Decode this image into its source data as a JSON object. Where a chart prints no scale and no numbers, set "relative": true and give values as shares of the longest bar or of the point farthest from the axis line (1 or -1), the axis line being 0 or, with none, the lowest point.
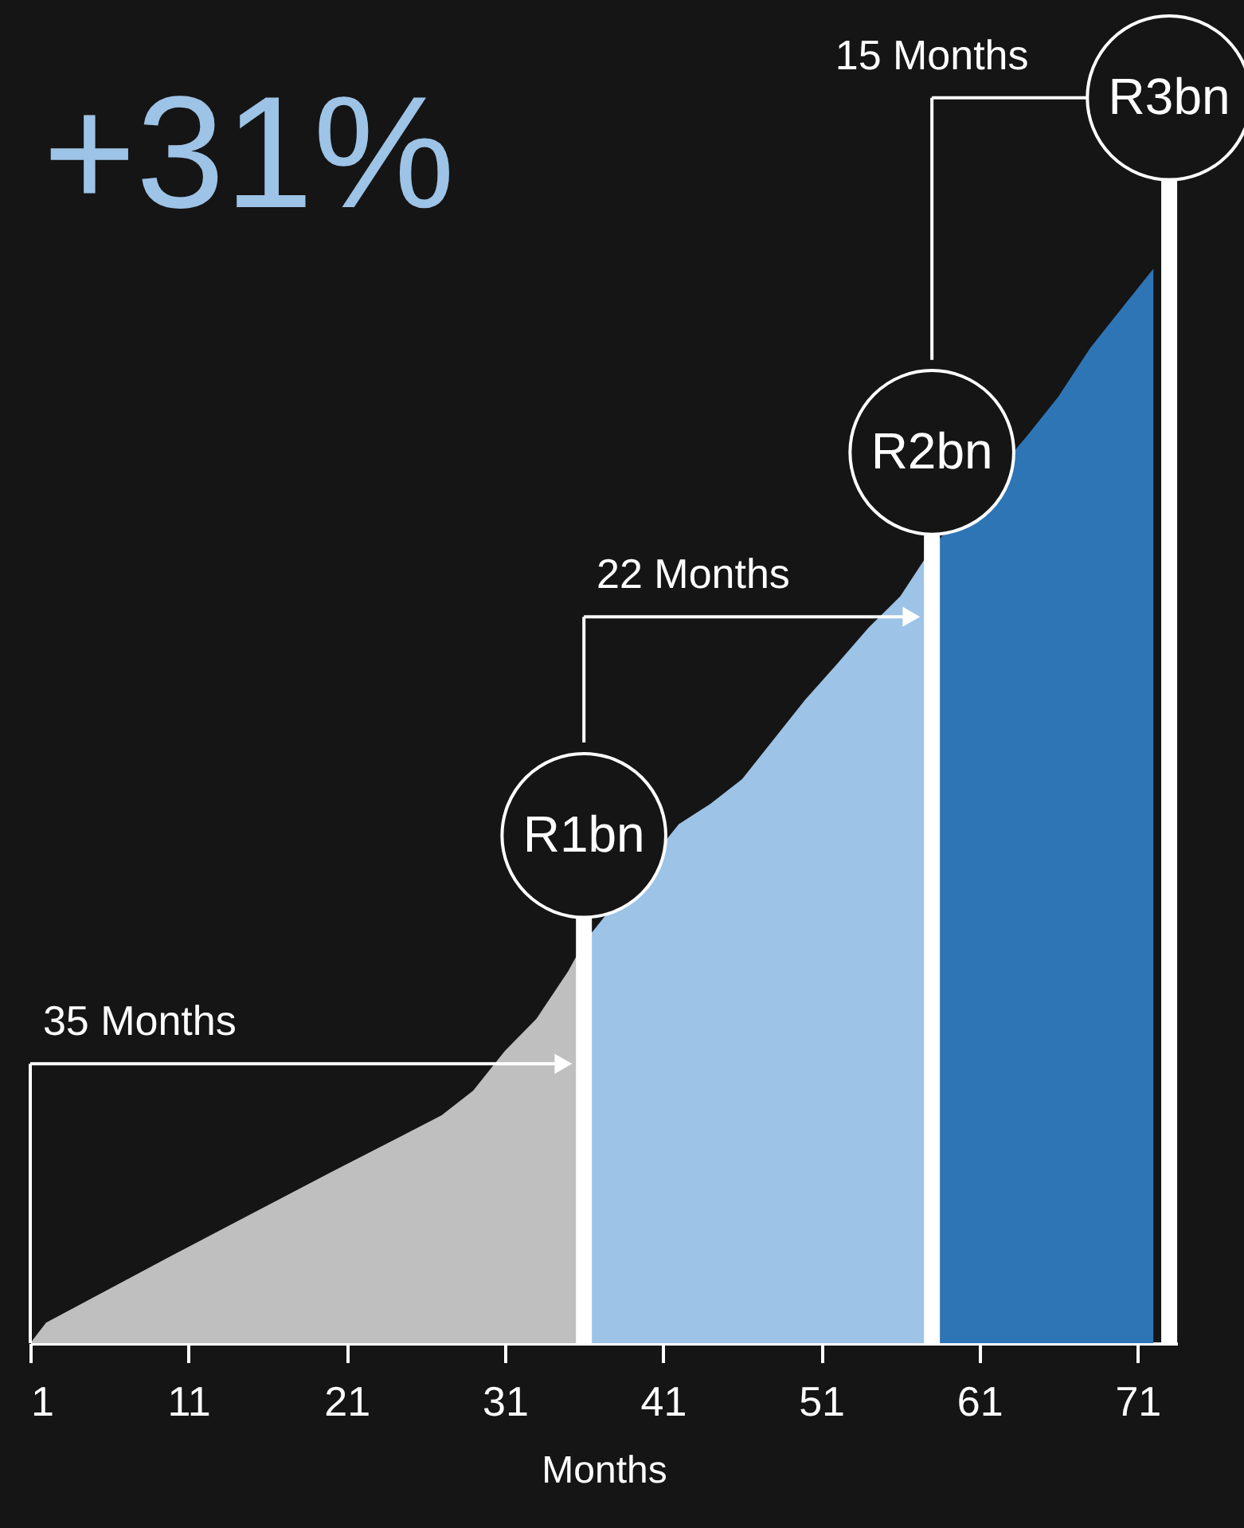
{
  "chart_data": {
    "type": "area",
    "title": "+31%",
    "xlabel": "Months",
    "relative": true,
    "xlim": [
      1,
      73.5
    ],
    "xticks": [
      1,
      11,
      21,
      31,
      41,
      51,
      61,
      71
    ],
    "series": [
      {
        "color": "#bfbfbf",
        "x": [
          1,
          2,
          10,
          20,
          27,
          29,
          31,
          33,
          35,
          36
        ],
        "values": [
          0,
          0.019,
          0.082,
          0.159,
          0.212,
          0.235,
          0.272,
          0.302,
          0.346,
          0.373
        ]
      },
      {
        "color": "#9dc3e6",
        "x": [
          36,
          42,
          44,
          46,
          48,
          50,
          52,
          54,
          56,
          58
        ],
        "values": [
          0.373,
          0.483,
          0.502,
          0.525,
          0.562,
          0.599,
          0.632,
          0.666,
          0.695,
          0.74
        ]
      },
      {
        "color": "#2e75b6",
        "x": [
          58,
          64,
          66,
          68,
          70,
          72
        ],
        "values": [
          0.74,
          0.844,
          0.881,
          0.926,
          0.963,
          1
        ]
      }
    ],
    "ref_lines": [
      {
        "axis": "x",
        "value": 36,
        "label": "R1bn",
        "color": "#ffffff"
      },
      {
        "axis": "x",
        "value": 58,
        "label": "R2bn",
        "color": "#ffffff"
      },
      {
        "axis": "x",
        "value": 73,
        "label": "R3bn",
        "color": "#ffffff"
      }
    ],
    "annotations": [
      "35 Months",
      "22 Months",
      "15 Months"
    ],
    "grid": false
  }
}
